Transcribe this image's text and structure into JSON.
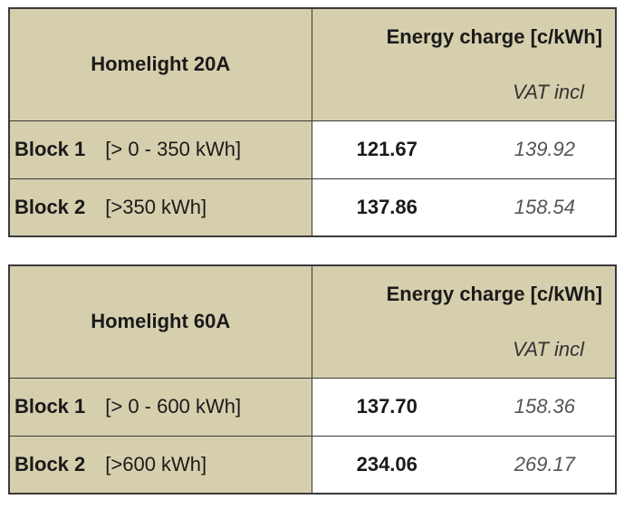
{
  "tables": [
    {
      "title": "Homelight 20A",
      "header": "Energy charge [c/kWh]",
      "subheader": "VAT incl",
      "rows": [
        {
          "block": "Block 1",
          "range": "[> 0 - 350 kWh]",
          "value": "121.67",
          "vat": "139.92"
        },
        {
          "block": "Block 2",
          "range": "[>350 kWh]",
          "value": "137.86",
          "vat": "158.54"
        }
      ]
    },
    {
      "title": "Homelight 60A",
      "header": "Energy charge [c/kWh]",
      "subheader": "VAT incl",
      "rows": [
        {
          "block": "Block 1",
          "range": "[> 0 - 600 kWh]",
          "value": "137.70",
          "vat": "158.36"
        },
        {
          "block": "Block 2",
          "range": "[>600 kWh]",
          "value": "234.06",
          "vat": "269.17"
        }
      ]
    }
  ]
}
